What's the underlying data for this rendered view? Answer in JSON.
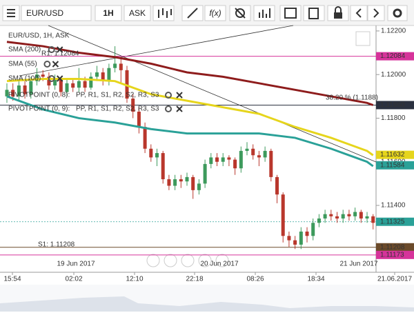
{
  "toolbar": {
    "symbol": "EUR/USD",
    "timeframe": "1H",
    "side": "ASK",
    "fx": "f(x)"
  },
  "chart_data": {
    "type": "candlestick",
    "title": "EUR/USD, 1H, ASK",
    "ylim": [
      1.11125,
      1.12225
    ],
    "yticks": [
      {
        "value": 1.122,
        "label": "1.12200"
      },
      {
        "value": 1.12,
        "label": "1.12000"
      },
      {
        "value": 1.118,
        "label": "1.11800"
      },
      {
        "value": 1.116,
        "label": "1.11600"
      },
      {
        "value": 1.114,
        "label": "1.11400"
      }
    ],
    "x_labels": [
      "15:54",
      "02:02",
      "12:10",
      "22:18",
      "08:26",
      "18:34",
      "21.06.2017"
    ],
    "date_labels": [
      "19 Jun 2017",
      "20 Jun 2017",
      "21 Jun 2017"
    ],
    "up_color": "#3d9a5c",
    "down_color": "#b9372c",
    "open": [
      1.119,
      1.1193,
      1.119,
      1.1195,
      1.1191,
      1.1197,
      1.12,
      1.1199,
      1.1195,
      1.1198,
      1.1192,
      1.1196,
      1.1194,
      1.1197,
      1.1194,
      1.1199,
      1.1201,
      1.1197,
      1.1203,
      1.1205,
      1.1202,
      1.1189,
      1.1183,
      1.1176,
      1.1166,
      1.1162,
      1.1164,
      1.1152,
      1.1149,
      1.1152,
      1.1151,
      1.1153,
      1.1147,
      1.115,
      1.1159,
      1.1162,
      1.116,
      1.1162,
      1.1161,
      1.1157,
      1.1165,
      1.1166,
      1.1163,
      1.1162,
      1.1165,
      1.1153,
      1.1145,
      1.1126,
      1.1124,
      1.1122,
      1.1128,
      1.1126,
      1.1132,
      1.1134,
      1.1136,
      1.1135,
      1.1134,
      1.1136,
      1.1135,
      1.1137,
      1.1134,
      1.1135
    ],
    "high": [
      1.1196,
      1.1196,
      1.1197,
      1.1197,
      1.1199,
      1.1203,
      1.1202,
      1.1201,
      1.12,
      1.1199,
      1.1198,
      1.1198,
      1.1203,
      1.1199,
      1.1201,
      1.1204,
      1.1203,
      1.1205,
      1.1213,
      1.1208,
      1.1204,
      1.1191,
      1.1185,
      1.1178,
      1.1168,
      1.1166,
      1.1165,
      1.1154,
      1.1154,
      1.1154,
      1.1155,
      1.1154,
      1.1152,
      1.1161,
      1.1164,
      1.1164,
      1.1164,
      1.1163,
      1.1162,
      1.1167,
      1.1169,
      1.1168,
      1.1165,
      1.1167,
      1.1166,
      1.1154,
      1.1146,
      1.1128,
      1.1126,
      1.113,
      1.113,
      1.1134,
      1.1136,
      1.1138,
      1.1138,
      1.1137,
      1.1138,
      1.1138,
      1.1139,
      1.1138,
      1.1137,
      1.1136
    ],
    "low": [
      1.1187,
      1.1188,
      1.1188,
      1.1189,
      1.1189,
      1.1195,
      1.1197,
      1.1193,
      1.1193,
      1.119,
      1.119,
      1.1192,
      1.1192,
      1.1192,
      1.1193,
      1.1197,
      1.1195,
      1.1195,
      1.1201,
      1.1196,
      1.1187,
      1.118,
      1.1173,
      1.1164,
      1.116,
      1.1158,
      1.115,
      1.1147,
      1.1147,
      1.1148,
      1.1149,
      1.1143,
      1.1145,
      1.1148,
      1.1157,
      1.1158,
      1.1158,
      1.1158,
      1.1154,
      1.1155,
      1.1163,
      1.1161,
      1.1158,
      1.116,
      1.1151,
      1.1141,
      1.1123,
      1.1121,
      1.112,
      1.112,
      1.1123,
      1.1124,
      1.113,
      1.1132,
      1.1133,
      1.1132,
      1.1132,
      1.1133,
      1.1133,
      1.1132,
      1.1132,
      1.1129
    ],
    "close": [
      1.1193,
      1.119,
      1.1195,
      1.1191,
      1.1197,
      1.12,
      1.1199,
      1.1195,
      1.1198,
      1.1192,
      1.1196,
      1.1194,
      1.1197,
      1.1194,
      1.1199,
      1.1201,
      1.1197,
      1.1203,
      1.1205,
      1.1202,
      1.1189,
      1.1183,
      1.1176,
      1.1166,
      1.1162,
      1.1164,
      1.1152,
      1.1149,
      1.1152,
      1.1151,
      1.1153,
      1.1147,
      1.115,
      1.1159,
      1.1162,
      1.116,
      1.1162,
      1.1161,
      1.1157,
      1.1165,
      1.1166,
      1.1163,
      1.1162,
      1.1165,
      1.1153,
      1.1145,
      1.1126,
      1.1124,
      1.1122,
      1.1128,
      1.1126,
      1.1132,
      1.1134,
      1.1136,
      1.1135,
      1.1134,
      1.1136,
      1.1135,
      1.1137,
      1.1134,
      1.1135,
      1.1132
    ],
    "series": [
      {
        "name": "SMA (200)",
        "color": "#8e1c1c",
        "x": [
          0,
          6,
          12,
          18,
          24,
          30,
          36,
          42,
          48,
          54,
          60,
          61
        ],
        "values": [
          1.1215,
          1.1213,
          1.121,
          1.1208,
          1.1205,
          1.1201,
          1.1199,
          1.1196,
          1.1193,
          1.119,
          1.1187,
          1.1186
        ]
      },
      {
        "name": "SMA (55)",
        "color": "#2aa198",
        "x": [
          0,
          6,
          12,
          18,
          24,
          30,
          36,
          42,
          48,
          54,
          60,
          61
        ],
        "values": [
          1.119,
          1.1184,
          1.118,
          1.1178,
          1.1175,
          1.1173,
          1.1173,
          1.1173,
          1.1171,
          1.1166,
          1.116,
          1.1158
        ]
      },
      {
        "name": "SMA (100)",
        "color": "#e6d51c",
        "x": [
          0,
          6,
          12,
          18,
          24,
          30,
          36,
          42,
          48,
          54,
          60,
          61
        ],
        "values": [
          1.1197,
          1.1198,
          1.1198,
          1.1197,
          1.1191,
          1.1188,
          1.1185,
          1.1182,
          1.1176,
          1.1171,
          1.1165,
          1.1163
        ]
      }
    ],
    "pivot_legends": [
      {
        "name": "PIVOTPOINT (0, 8):",
        "levels": "PP, R1, S1, R2, S2, R3, S3"
      },
      {
        "name": "PIVOTPOINT (0, 9):",
        "levels": "PP, R1, S1, R2, S2, R3, S3"
      }
    ],
    "price_lines": [
      {
        "value": 1.12084,
        "label": "1.12084",
        "color": "#d6339a"
      },
      {
        "value": 1.1186,
        "label": "1.11860",
        "color": "#2b3140"
      },
      {
        "value": 1.11632,
        "label": "1.11632",
        "color": "#e6d51c"
      },
      {
        "value": 1.11584,
        "label": "1.11584",
        "color": "#2aa198"
      },
      {
        "value": 1.11325,
        "label": "1.11325",
        "color": "#2aa198"
      },
      {
        "value": 1.11208,
        "label": "1.11208",
        "color": "#6b4a2a"
      },
      {
        "value": 1.11173,
        "label": "1.11173",
        "color": "#d6339a"
      }
    ],
    "annotations": [
      "38.20 % (1.1188)",
      "S1: 1.11208",
      "R1: 1.12084"
    ]
  }
}
